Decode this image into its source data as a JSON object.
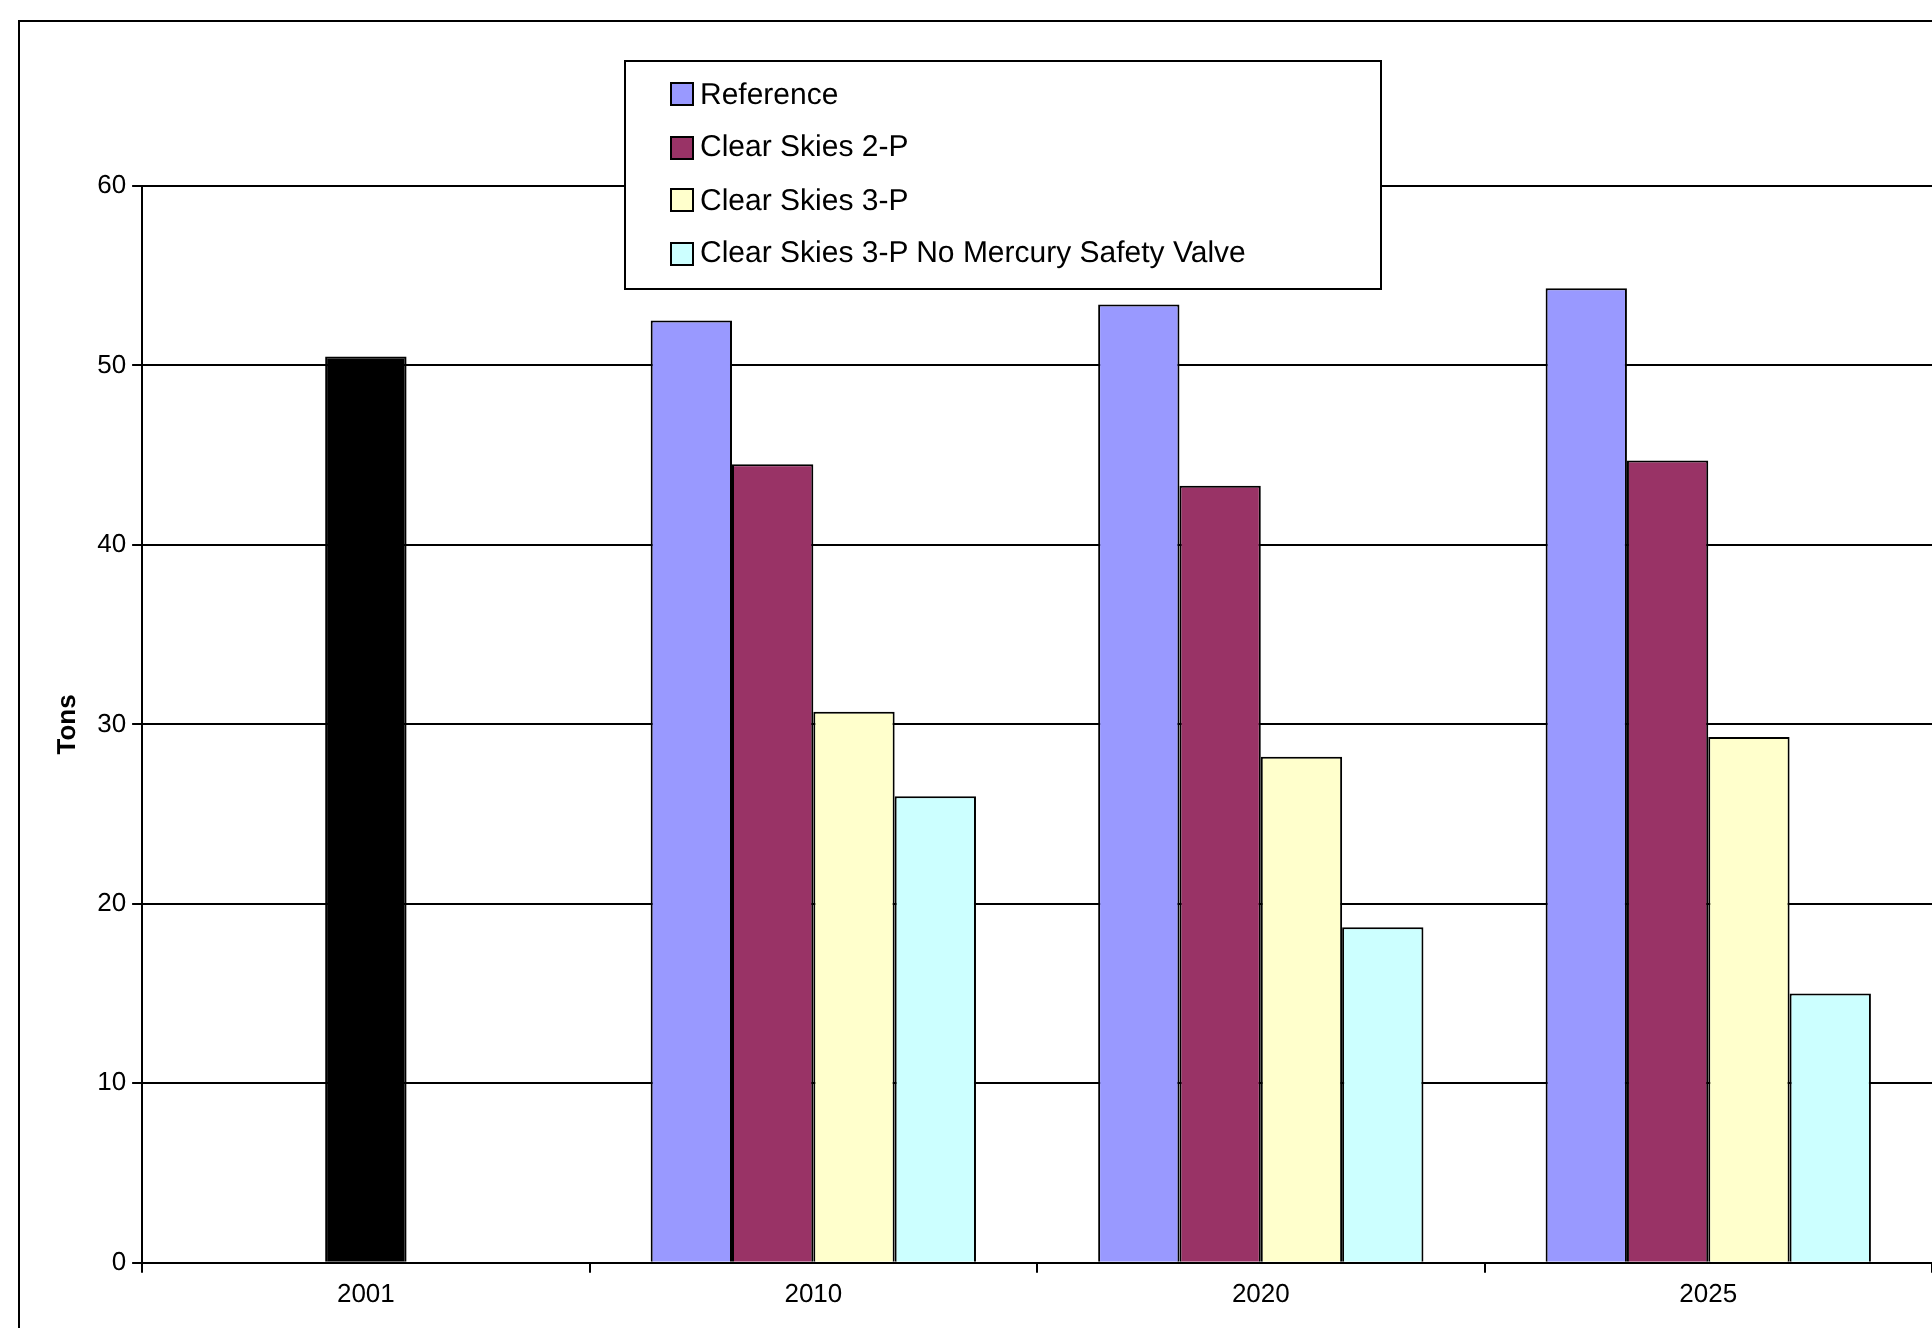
{
  "chart_data": {
    "type": "bar",
    "ylabel": "Tons",
    "categories": [
      "2001",
      "2010",
      "2020",
      "2025"
    ],
    "series": [
      {
        "color": "#000000",
        "values": [
          50.5,
          null,
          null,
          null
        ]
      },
      {
        "name": "Reference",
        "color": "#9999ff",
        "values": [
          null,
          52.5,
          53.4,
          54.3
        ]
      },
      {
        "name": "Clear Skies 2-P",
        "color": "#993366",
        "values": [
          null,
          44.5,
          43.3,
          44.7
        ]
      },
      {
        "name": "Clear Skies 3-P",
        "color": "#ffffcc",
        "values": [
          null,
          30.7,
          28.2,
          29.3
        ]
      },
      {
        "name": "Clear Skies 3-P No Mercury Safety Valve",
        "color": "#ccffff",
        "values": [
          null,
          26.0,
          18.7,
          15.0
        ]
      }
    ],
    "ylim": [
      0,
      60
    ],
    "yticks": [
      0,
      10,
      20,
      30,
      40,
      50,
      60
    ],
    "grid": "y",
    "legend": "top"
  }
}
